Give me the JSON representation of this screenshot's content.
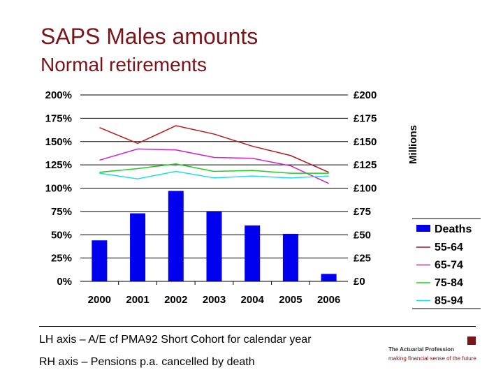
{
  "header": {
    "title": "SAPS Males amounts",
    "subtitle": "Normal retirements"
  },
  "colors": {
    "title": "#7a1418",
    "deaths": "#0000ee",
    "s55_64": "#b21a1a",
    "s65_74": "#cc22cc",
    "s75_84": "#22cc22",
    "s85_94": "#22dddd"
  },
  "chart_data": {
    "type": "bar+line",
    "categories": [
      "2000",
      "2001",
      "2002",
      "2003",
      "2004",
      "2005",
      "2006"
    ],
    "left_axis": {
      "ylim": [
        0,
        200
      ],
      "ticks": [
        0,
        25,
        50,
        75,
        100,
        125,
        150,
        175,
        200
      ],
      "tick_labels": [
        "0%",
        "25%",
        "50%",
        "75%",
        "100%",
        "125%",
        "150%",
        "175%",
        "200%"
      ],
      "label": "A/E cf PMA92 Short Cohort for calendar year"
    },
    "right_axis": {
      "ylim": [
        0,
        200
      ],
      "ticks": [
        0,
        25,
        50,
        75,
        100,
        125,
        150,
        175,
        200
      ],
      "tick_labels": [
        "£0",
        "£25",
        "£50",
        "£75",
        "£100",
        "£125",
        "£150",
        "£175",
        "£200"
      ],
      "label": "Millions",
      "description": "Pensions p.a. cancelled by death"
    },
    "bars": {
      "name": "Deaths",
      "axis": "right",
      "values": [
        44,
        73,
        97,
        75,
        60,
        51,
        8
      ]
    },
    "series": [
      {
        "name": "55-64",
        "axis": "left",
        "values": [
          165,
          148,
          167,
          158,
          145,
          135,
          117
        ]
      },
      {
        "name": "65-74",
        "axis": "left",
        "values": [
          130,
          142,
          141,
          133,
          132,
          124,
          105
        ]
      },
      {
        "name": "75-84",
        "axis": "left",
        "values": [
          117,
          121,
          126,
          118,
          119,
          116,
          116
        ]
      },
      {
        "name": "85-94",
        "axis": "left",
        "values": [
          116,
          110,
          118,
          111,
          113,
          111,
          113
        ]
      }
    ],
    "grid": true,
    "legend_position": "right"
  },
  "footnotes": {
    "lh": "LH axis – A/E cf PMA92 Short Cohort for calendar year",
    "rh": "RH axis – Pensions p.a. cancelled by death"
  },
  "logo": {
    "name": "The Actuarial Profession",
    "tagline": "making financial sense of the future"
  }
}
